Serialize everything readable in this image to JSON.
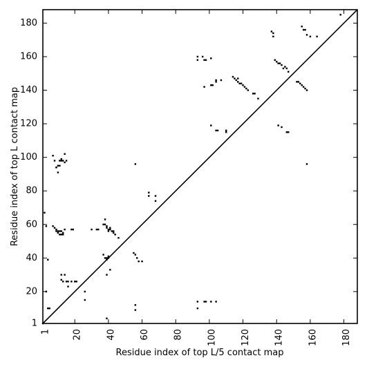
{
  "chart_data": {
    "type": "scatter",
    "title": "",
    "xlabel": "Residue index of top L/5 contact map",
    "ylabel": "Residue index of top L contact map",
    "xlim": [
      1,
      188
    ],
    "ylim": [
      1,
      188
    ],
    "xticks": [
      1,
      20,
      40,
      60,
      80,
      100,
      120,
      140,
      160,
      180
    ],
    "yticks": [
      1,
      20,
      40,
      60,
      80,
      100,
      120,
      140,
      160,
      180
    ],
    "xtick_labels": [
      "1",
      "20",
      "40",
      "60",
      "80",
      "100",
      "120",
      "140",
      "160",
      "180"
    ],
    "ytick_labels": [
      "1",
      "20",
      "40",
      "60",
      "80",
      "100",
      "120",
      "140",
      "160",
      "180"
    ],
    "grid": false,
    "diagonal_line": true,
    "marker_color": "#000000",
    "series": [
      {
        "x": [
          3,
          7,
          8,
          9,
          9,
          10,
          10,
          11,
          11,
          12,
          12,
          13,
          13,
          14,
          18,
          19,
          9,
          10,
          11,
          11,
          12,
          12,
          13,
          14,
          15,
          7,
          8,
          9,
          10,
          14,
          30,
          33,
          34,
          37,
          38,
          38,
          39,
          39,
          40,
          40,
          41,
          41,
          42,
          43,
          43,
          44,
          46,
          37,
          38,
          39,
          40,
          55,
          56,
          57,
          58,
          60,
          64,
          64,
          68,
          68,
          2,
          4,
          12,
          12,
          13,
          14,
          15,
          16,
          16,
          18,
          20,
          21,
          26,
          26,
          3,
          4,
          5,
          39,
          39,
          41,
          56,
          56,
          93,
          93,
          97,
          98,
          101,
          104,
          1,
          56,
          39,
          40
        ],
        "y": [
          59,
          59,
          58,
          57,
          56,
          56,
          55,
          54,
          56,
          54,
          56,
          55,
          54,
          57,
          57,
          57,
          94,
          95,
          95,
          98,
          98,
          99,
          98,
          97,
          98,
          101,
          98,
          94,
          91,
          102,
          57,
          57,
          57,
          60,
          60,
          63,
          59,
          58,
          57,
          56,
          58,
          57,
          56,
          56,
          55,
          54,
          52,
          42,
          40,
          39,
          41,
          43,
          42,
          40,
          38,
          38,
          77,
          79,
          74,
          77,
          67,
          39,
          30,
          27,
          26,
          30,
          26,
          26,
          23,
          26,
          26,
          26,
          20,
          15,
          20,
          10,
          10,
          4,
          30,
          33,
          9,
          12,
          10,
          14,
          14,
          14,
          14,
          14,
          1,
          96,
          40,
          40
        ]
      },
      {
        "x": [
          93,
          93,
          96,
          97,
          98,
          101,
          97,
          101,
          102,
          104,
          104,
          107,
          114,
          115,
          116,
          117,
          117,
          118,
          119,
          120,
          121,
          122,
          123,
          126,
          127,
          129,
          139,
          140,
          141,
          142,
          143,
          144,
          145,
          146,
          147,
          152,
          153,
          154,
          155,
          156,
          157,
          158,
          137,
          138,
          138,
          155,
          156,
          157,
          158,
          160,
          164,
          178,
          158,
          143,
          146,
          147,
          141,
          104,
          105,
          110,
          110,
          101
        ],
        "y": [
          160,
          158,
          160,
          158,
          158,
          159,
          142,
          143,
          143,
          145,
          146,
          146,
          148,
          147,
          146,
          145,
          147,
          144,
          144,
          143,
          142,
          141,
          140,
          138,
          138,
          135,
          158,
          157,
          156,
          156,
          155,
          153,
          154,
          153,
          151,
          145,
          145,
          144,
          143,
          142,
          141,
          140,
          175,
          174,
          172,
          178,
          176,
          176,
          173,
          172,
          172,
          185,
          96,
          118,
          115,
          115,
          119,
          116,
          116,
          116,
          115,
          119
        ]
      }
    ]
  }
}
